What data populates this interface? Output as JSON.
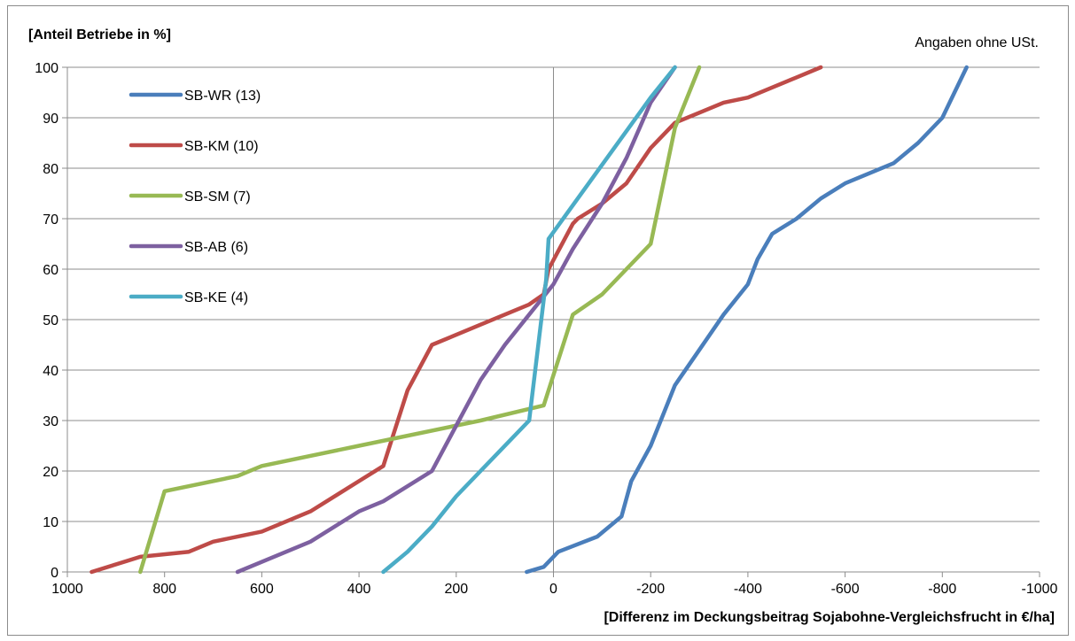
{
  "chart_data": {
    "type": "line",
    "ylabel": "[Anteil Betriebe in %]",
    "xlabel": "[Differenz im Deckungsbeitrag Sojabohne-Vergleichsfrucht in €/ha]",
    "note": "Angaben ohne USt.",
    "xlim": [
      1000,
      -1000
    ],
    "ylim": [
      0,
      100
    ],
    "xticks": [
      1000,
      800,
      600,
      400,
      200,
      0,
      -200,
      -400,
      -600,
      -800,
      -1000
    ],
    "yticks": [
      0,
      10,
      20,
      30,
      40,
      50,
      60,
      70,
      80,
      90,
      100
    ],
    "grid": "horizontal",
    "legend_position": "top-left",
    "series": [
      {
        "name": "SB-WR (13)",
        "color": "#4a7ebb",
        "x": [
          55,
          20,
          -10,
          -90,
          -140,
          -160,
          -200,
          -250,
          -300,
          -350,
          -400,
          -420,
          -450,
          -500,
          -550,
          -600,
          -650,
          -700,
          -750,
          -800,
          -850
        ],
        "y": [
          0,
          1,
          4,
          7,
          11,
          18,
          25,
          37,
          44,
          51,
          57,
          62,
          67,
          70,
          74,
          77,
          79,
          81,
          85,
          90,
          100
        ]
      },
      {
        "name": "SB-KM (10)",
        "color": "#be4b48",
        "x": [
          950,
          850,
          750,
          700,
          600,
          500,
          400,
          350,
          300,
          250,
          150,
          50,
          20,
          10,
          -40,
          -50,
          -100,
          -150,
          -200,
          -250,
          -300,
          -350,
          -400,
          -450,
          -500,
          -550
        ],
        "y": [
          0,
          3,
          4,
          6,
          8,
          12,
          18,
          21,
          36,
          45,
          49,
          53,
          55,
          60,
          69,
          70,
          73,
          77,
          84,
          89,
          91,
          93,
          94,
          96,
          98,
          100
        ]
      },
      {
        "name": "SB-SM (7)",
        "color": "#98b954",
        "x": [
          850,
          800,
          650,
          600,
          400,
          150,
          20,
          -40,
          -100,
          -200,
          -250,
          -300
        ],
        "y": [
          0,
          16,
          19,
          21,
          25,
          30,
          33,
          51,
          55,
          65,
          88,
          100
        ]
      },
      {
        "name": "SB-AB (6)",
        "color": "#7d60a0",
        "x": [
          650,
          500,
          400,
          350,
          250,
          150,
          100,
          50,
          0,
          -40,
          -100,
          -150,
          -200,
          -250
        ],
        "y": [
          0,
          6,
          12,
          14,
          20,
          38,
          45,
          51,
          57,
          64,
          73,
          82,
          93,
          100
        ]
      },
      {
        "name": "SB-KE (4)",
        "color": "#4bacc6",
        "x": [
          350,
          300,
          250,
          200,
          50,
          15,
          10,
          -200,
          -250
        ],
        "y": [
          0,
          4,
          9,
          15,
          30,
          58,
          66,
          94,
          100
        ]
      }
    ]
  }
}
